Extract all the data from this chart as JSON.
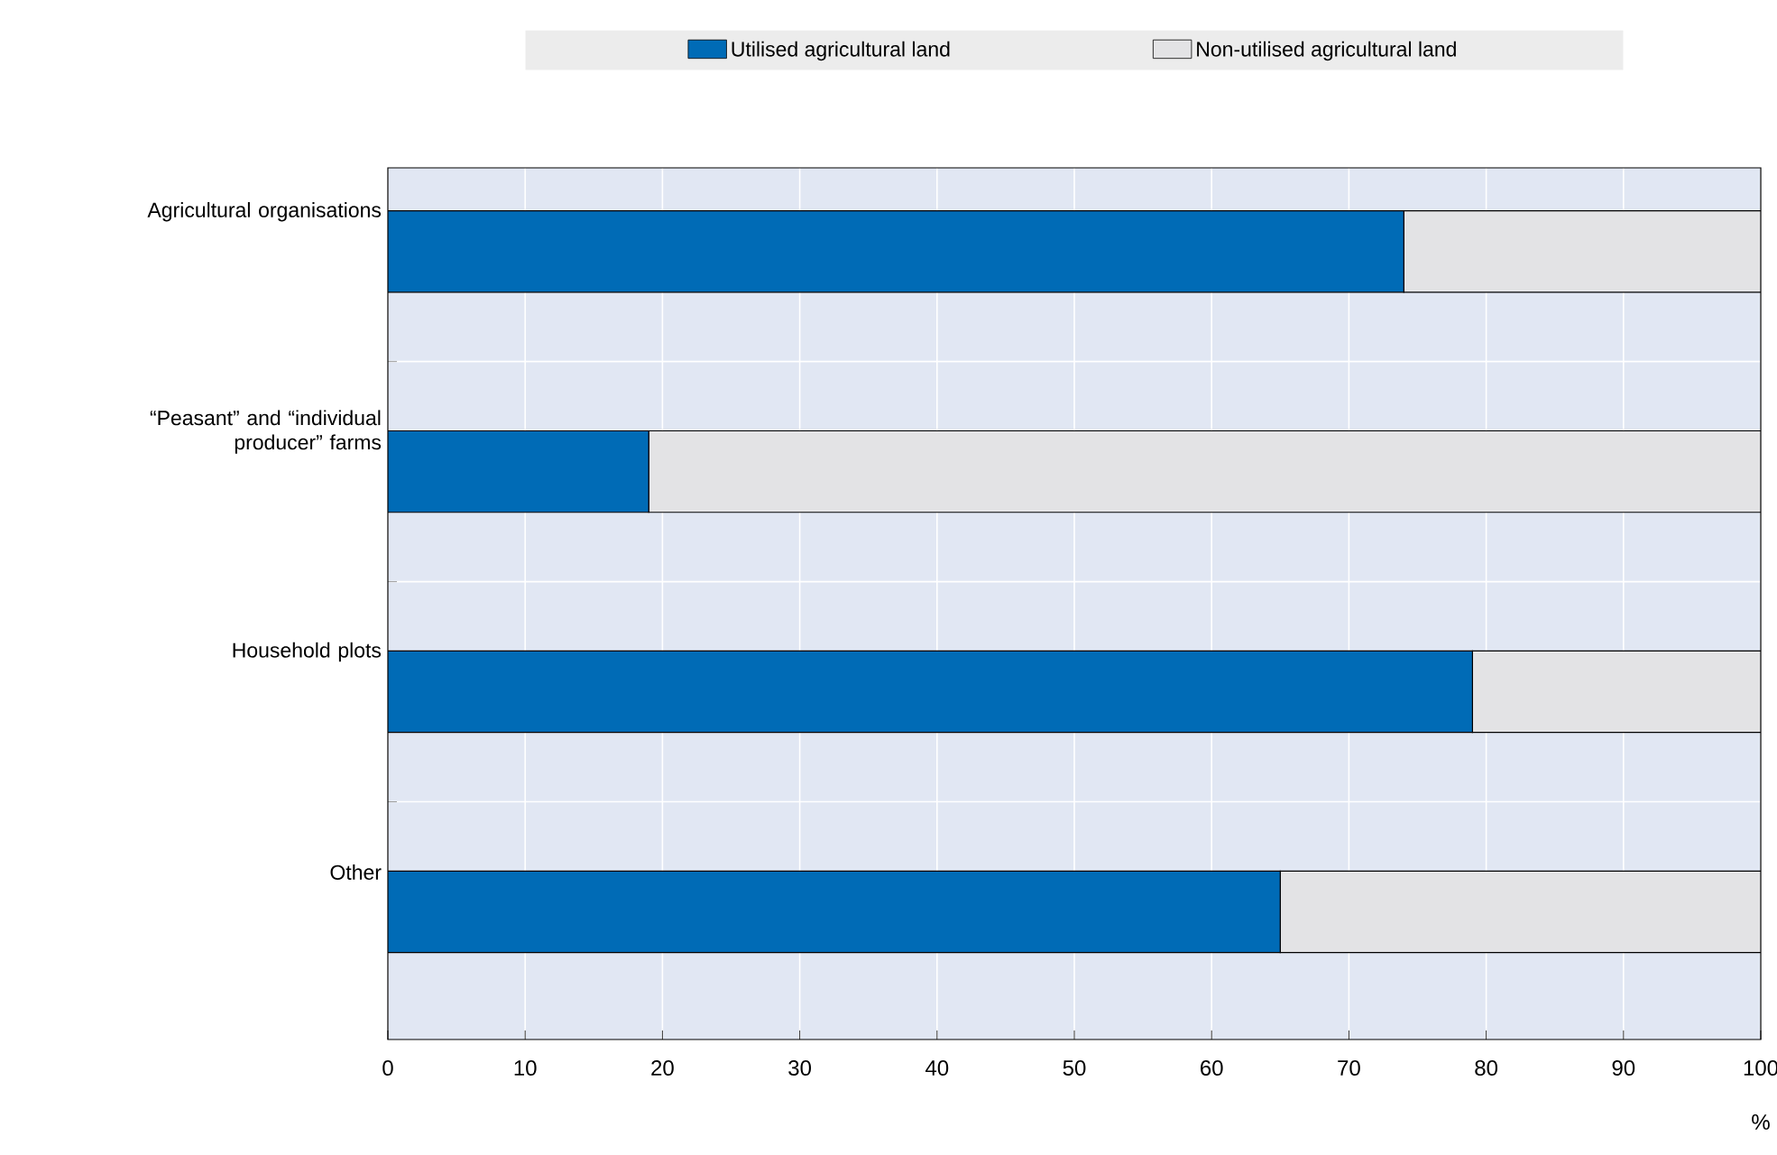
{
  "chart_data": {
    "type": "bar",
    "orientation": "horizontal",
    "stacked": true,
    "xlabel": "%",
    "categories": [
      "Agricultural organisations",
      "“Peasant” and “individual producer” farms",
      "Household plots",
      "Other"
    ],
    "series": [
      {
        "name": "Utilised agricultural land",
        "color": "#006bb6",
        "values": [
          74,
          19,
          79,
          65
        ]
      },
      {
        "name": "Non-utilised agricultural land",
        "color": "#e3e3e5",
        "values": [
          26,
          81,
          21,
          35
        ]
      }
    ],
    "xlim": [
      0,
      100
    ],
    "xticks": [
      0,
      10,
      20,
      30,
      40,
      50,
      60,
      70,
      80,
      90,
      100
    ],
    "grid": true,
    "legend": "top"
  }
}
